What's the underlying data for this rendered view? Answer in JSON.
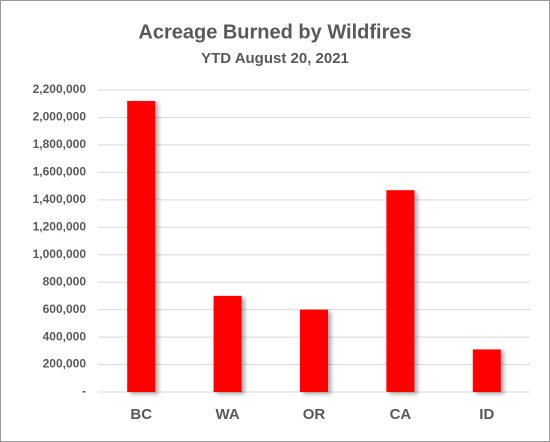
{
  "chart_data": {
    "type": "bar",
    "title": "Acreage Burned by Wildfires",
    "subtitle": "YTD August 20, 2021",
    "categories": [
      "BC",
      "WA",
      "OR",
      "CA",
      "ID"
    ],
    "values": [
      2120000,
      700000,
      600000,
      1470000,
      310000
    ],
    "color": "#ff0000",
    "ylim": [
      0,
      2200000
    ],
    "yticks": [
      {
        "value": 0,
        "label": "-"
      },
      {
        "value": 200000,
        "label": "200,000"
      },
      {
        "value": 400000,
        "label": "400,000"
      },
      {
        "value": 600000,
        "label": "600,000"
      },
      {
        "value": 800000,
        "label": "800,000"
      },
      {
        "value": 1000000,
        "label": "1,000,000"
      },
      {
        "value": 1200000,
        "label": "1,200,000"
      },
      {
        "value": 1400000,
        "label": "1,400,000"
      },
      {
        "value": 1600000,
        "label": "1,600,000"
      },
      {
        "value": 1800000,
        "label": "1,800,000"
      },
      {
        "value": 2000000,
        "label": "2,000,000"
      },
      {
        "value": 2200000,
        "label": "2,200,000"
      }
    ],
    "grid": true
  }
}
